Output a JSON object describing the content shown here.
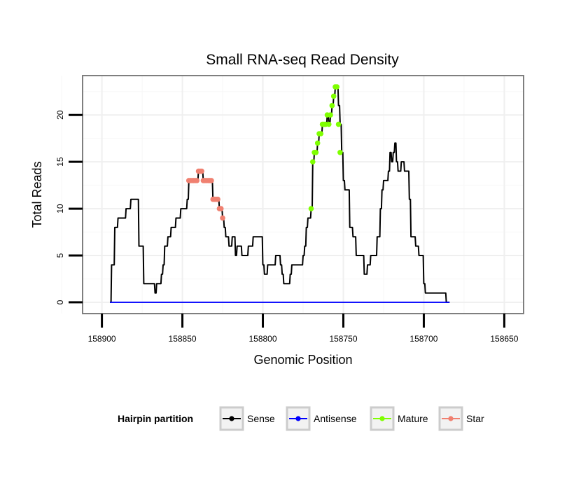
{
  "chart_data": {
    "type": "line",
    "title": "Small RNA-seq Read Density",
    "xlabel": "Genomic Position",
    "ylabel": "Total Reads",
    "xlim": [
      158912,
      158638
    ],
    "ylim": [
      -1.2,
      24.2
    ],
    "x_reversed": true,
    "xticks": [
      158900,
      158850,
      158800,
      158750,
      158700,
      158650
    ],
    "xtick_labels": [
      "158900",
      "158850",
      "158800",
      "158750",
      "158700",
      "158650"
    ],
    "yticks": [
      0,
      5,
      10,
      15,
      20
    ],
    "ytick_labels": [
      "0",
      "5",
      "10",
      "15",
      "20"
    ],
    "grid": true,
    "legend": {
      "title": "Hairpin partition",
      "position": "bottom",
      "entries": [
        {
          "label": "Sense",
          "color": "#000000"
        },
        {
          "label": "Antisense",
          "color": "#0000ff"
        },
        {
          "label": "Mature",
          "color": "#7fff00"
        },
        {
          "label": "Star",
          "color": "#f08070"
        }
      ]
    },
    "series": [
      {
        "name": "Sense",
        "color": "#000000",
        "style": "line",
        "points": [
          [
            158895,
            0
          ],
          [
            158894,
            4
          ],
          [
            158893,
            4
          ],
          [
            158892,
            8
          ],
          [
            158891,
            8
          ],
          [
            158890,
            9
          ],
          [
            158889,
            9
          ],
          [
            158888,
            9
          ],
          [
            158887,
            9
          ],
          [
            158886,
            9
          ],
          [
            158885,
            10
          ],
          [
            158884,
            10
          ],
          [
            158883,
            10
          ],
          [
            158882,
            11
          ],
          [
            158881,
            11
          ],
          [
            158880,
            11
          ],
          [
            158879,
            11
          ],
          [
            158878,
            11
          ],
          [
            158877,
            6
          ],
          [
            158876,
            6
          ],
          [
            158875,
            6
          ],
          [
            158874,
            2
          ],
          [
            158873,
            2
          ],
          [
            158872,
            2
          ],
          [
            158871,
            2
          ],
          [
            158870,
            2
          ],
          [
            158869,
            2
          ],
          [
            158868,
            2
          ],
          [
            158867,
            1
          ],
          [
            158866,
            2
          ],
          [
            158865,
            2
          ],
          [
            158864,
            2
          ],
          [
            158863,
            3
          ],
          [
            158862,
            4
          ],
          [
            158861,
            6
          ],
          [
            158860,
            6
          ],
          [
            158859,
            7
          ],
          [
            158858,
            7
          ],
          [
            158857,
            8
          ],
          [
            158856,
            8
          ],
          [
            158855,
            8
          ],
          [
            158854,
            9
          ],
          [
            158853,
            9
          ],
          [
            158852,
            9
          ],
          [
            158851,
            10
          ],
          [
            158850,
            10
          ],
          [
            158849,
            10
          ],
          [
            158848,
            10
          ],
          [
            158847,
            11
          ],
          [
            158846,
            13
          ],
          [
            158845,
            13
          ],
          [
            158844,
            13
          ],
          [
            158843,
            13
          ],
          [
            158842,
            13
          ],
          [
            158841,
            13
          ],
          [
            158840,
            14
          ],
          [
            158839,
            14
          ],
          [
            158838,
            14
          ],
          [
            158837,
            13
          ],
          [
            158836,
            13
          ],
          [
            158835,
            13
          ],
          [
            158834,
            13
          ],
          [
            158833,
            13
          ],
          [
            158832,
            13
          ],
          [
            158831,
            11
          ],
          [
            158830,
            11
          ],
          [
            158829,
            11
          ],
          [
            158828,
            11
          ],
          [
            158827,
            10
          ],
          [
            158826,
            10
          ],
          [
            158825,
            9
          ],
          [
            158824,
            8
          ],
          [
            158823,
            7
          ],
          [
            158822,
            7
          ],
          [
            158821,
            6
          ],
          [
            158820,
            6
          ],
          [
            158819,
            7
          ],
          [
            158818,
            7
          ],
          [
            158817,
            5
          ],
          [
            158816,
            6
          ],
          [
            158815,
            6
          ],
          [
            158814,
            6
          ],
          [
            158813,
            5
          ],
          [
            158812,
            5
          ],
          [
            158811,
            5
          ],
          [
            158810,
            5
          ],
          [
            158809,
            6
          ],
          [
            158808,
            6
          ],
          [
            158807,
            6
          ],
          [
            158806,
            7
          ],
          [
            158805,
            7
          ],
          [
            158804,
            7
          ],
          [
            158803,
            7
          ],
          [
            158802,
            7
          ],
          [
            158801,
            7
          ],
          [
            158800,
            4
          ],
          [
            158799,
            3
          ],
          [
            158798,
            3
          ],
          [
            158797,
            4
          ],
          [
            158796,
            4
          ],
          [
            158795,
            4
          ],
          [
            158794,
            4
          ],
          [
            158793,
            4
          ],
          [
            158792,
            5
          ],
          [
            158791,
            5
          ],
          [
            158790,
            5
          ],
          [
            158789,
            4
          ],
          [
            158788,
            3
          ],
          [
            158787,
            2
          ],
          [
            158786,
            2
          ],
          [
            158785,
            2
          ],
          [
            158784,
            2
          ],
          [
            158783,
            3
          ],
          [
            158782,
            4
          ],
          [
            158781,
            4
          ],
          [
            158780,
            4
          ],
          [
            158779,
            4
          ],
          [
            158778,
            4
          ],
          [
            158777,
            4
          ],
          [
            158776,
            4
          ],
          [
            158775,
            5
          ],
          [
            158774,
            6
          ],
          [
            158773,
            8
          ],
          [
            158772,
            9
          ],
          [
            158771,
            9
          ],
          [
            158770,
            10
          ],
          [
            158769,
            15
          ],
          [
            158768,
            16
          ],
          [
            158767,
            16
          ],
          [
            158766,
            17
          ],
          [
            158765,
            18
          ],
          [
            158764,
            18
          ],
          [
            158763,
            19
          ],
          [
            158762,
            19
          ],
          [
            158761,
            19
          ],
          [
            158760,
            20
          ],
          [
            158759,
            19
          ],
          [
            158758,
            20
          ],
          [
            158757,
            21
          ],
          [
            158756,
            22
          ],
          [
            158755,
            23
          ],
          [
            158754,
            23
          ],
          [
            158753,
            21
          ],
          [
            158752,
            19
          ],
          [
            158751,
            16
          ],
          [
            158750,
            13
          ],
          [
            158749,
            12
          ],
          [
            158748,
            12
          ],
          [
            158747,
            12
          ],
          [
            158746,
            8
          ],
          [
            158745,
            8
          ],
          [
            158744,
            7
          ],
          [
            158743,
            7
          ],
          [
            158742,
            5
          ],
          [
            158741,
            5
          ],
          [
            158740,
            5
          ],
          [
            158739,
            5
          ],
          [
            158738,
            5
          ],
          [
            158737,
            3
          ],
          [
            158736,
            3
          ],
          [
            158735,
            4
          ],
          [
            158734,
            4
          ],
          [
            158733,
            5
          ],
          [
            158732,
            5
          ],
          [
            158731,
            5
          ],
          [
            158730,
            5
          ],
          [
            158729,
            7
          ],
          [
            158728,
            7
          ],
          [
            158727,
            10
          ],
          [
            158726,
            12
          ],
          [
            158725,
            13
          ],
          [
            158724,
            13
          ],
          [
            158723,
            13
          ],
          [
            158722,
            14
          ],
          [
            158721,
            16
          ],
          [
            158720,
            15
          ],
          [
            158719,
            16
          ],
          [
            158718,
            17
          ],
          [
            158717,
            15
          ],
          [
            158716,
            14
          ],
          [
            158715,
            14
          ],
          [
            158714,
            15
          ],
          [
            158713,
            15
          ],
          [
            158712,
            14
          ],
          [
            158711,
            14
          ],
          [
            158710,
            14
          ],
          [
            158709,
            11
          ],
          [
            158708,
            7
          ],
          [
            158707,
            7
          ],
          [
            158706,
            7
          ],
          [
            158705,
            6
          ],
          [
            158704,
            6
          ],
          [
            158703,
            5
          ],
          [
            158702,
            5
          ],
          [
            158701,
            5
          ],
          [
            158700,
            2
          ],
          [
            158699,
            1
          ],
          [
            158698,
            1
          ],
          [
            158697,
            1
          ],
          [
            158696,
            1
          ],
          [
            158695,
            1
          ],
          [
            158694,
            1
          ],
          [
            158693,
            1
          ],
          [
            158692,
            1
          ],
          [
            158691,
            1
          ],
          [
            158690,
            1
          ],
          [
            158689,
            1
          ],
          [
            158688,
            1
          ],
          [
            158687,
            1
          ],
          [
            158686,
            0
          ],
          [
            158685,
            0
          ],
          [
            158684,
            0
          ]
        ]
      },
      {
        "name": "Antisense",
        "color": "#0000ff",
        "style": "line",
        "points": [
          [
            158895,
            0
          ],
          [
            158684,
            0
          ]
        ]
      },
      {
        "name": "Mature",
        "color": "#7fff00",
        "style": "points",
        "points": [
          [
            158770,
            10
          ],
          [
            158769,
            15
          ],
          [
            158768,
            16
          ],
          [
            158767,
            16
          ],
          [
            158766,
            17
          ],
          [
            158765,
            18
          ],
          [
            158764,
            18
          ],
          [
            158763,
            19
          ],
          [
            158762,
            19
          ],
          [
            158761,
            19
          ],
          [
            158760,
            20
          ],
          [
            158759,
            19
          ],
          [
            158758,
            20
          ],
          [
            158757,
            21
          ],
          [
            158756,
            22
          ],
          [
            158755,
            23
          ],
          [
            158754,
            23
          ],
          [
            158753,
            19
          ],
          [
            158752,
            16
          ]
        ]
      },
      {
        "name": "Star",
        "color": "#f08070",
        "style": "points",
        "points": [
          [
            158846,
            13
          ],
          [
            158845,
            13
          ],
          [
            158844,
            13
          ],
          [
            158843,
            13
          ],
          [
            158842,
            13
          ],
          [
            158841,
            13
          ],
          [
            158840,
            14
          ],
          [
            158839,
            14
          ],
          [
            158838,
            14
          ],
          [
            158837,
            13
          ],
          [
            158836,
            13
          ],
          [
            158835,
            13
          ],
          [
            158834,
            13
          ],
          [
            158833,
            13
          ],
          [
            158832,
            13
          ],
          [
            158831,
            11
          ],
          [
            158830,
            11
          ],
          [
            158829,
            11
          ],
          [
            158828,
            11
          ],
          [
            158827,
            10
          ],
          [
            158826,
            10
          ],
          [
            158825,
            9
          ]
        ]
      }
    ]
  }
}
